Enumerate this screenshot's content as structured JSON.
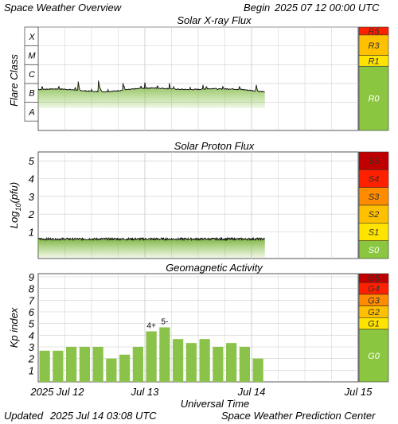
{
  "header": {
    "title": "Space Weather Overview",
    "begin_label": "Begin",
    "begin_value": "2025 07 12 00:00 UTC"
  },
  "footer": {
    "updated_label": "Updated",
    "updated_value": "2025 Jul 14 03:08 UTC",
    "credit": "Space Weather Prediction Center"
  },
  "colors": {
    "grid": "#cccccc",
    "frame": "#555555",
    "green": "#8bc34a",
    "green_dark": "#7cb342",
    "scale_green": "#8ac640",
    "yellow": "#ffe400",
    "orange_light": "#ffc000",
    "orange": "#ff8c00",
    "red_orange": "#ff2000",
    "dark_red": "#c00000"
  },
  "chart_data": [
    {
      "name": "xray",
      "type": "area",
      "title": "Solar X-ray Flux",
      "ylabel": "Flare Class",
      "class_labels": [
        "A",
        "B",
        "C",
        "M",
        "X"
      ],
      "ylim": [
        -8.5,
        -3
      ],
      "x_range_hours": [
        0,
        72
      ],
      "observed_until_hour": 51.1,
      "tick_labels": [
        "2025 Jul 12",
        "Jul 13",
        "Jul 14",
        "Jul 15"
      ],
      "peaks": [
        {
          "hour": 9.0,
          "log_flux": -5.9
        },
        {
          "hour": 13.5,
          "log_flux": -5.75
        },
        {
          "hour": 19.0,
          "log_flux": -5.85
        },
        {
          "hour": 24.0,
          "log_flux": -5.95
        },
        {
          "hour": 29.5,
          "log_flux": -5.95
        },
        {
          "hour": 37.0,
          "log_flux": -5.95
        },
        {
          "hour": 49.0,
          "log_flux": -5.95
        }
      ],
      "scale": [
        {
          "label": "R0",
          "color": "#8ac640"
        },
        {
          "label": "R1",
          "color": "#ffe400"
        },
        {
          "label": "R3",
          "color": "#ffc000"
        },
        {
          "label": "R5",
          "color": "#ff2000"
        }
      ]
    },
    {
      "name": "proton",
      "type": "area",
      "title": "Solar Proton Flux",
      "ylabel": "Log10(pfu)",
      "ylabel_main": "Log",
      "ylabel_sub": "10",
      "ylabel_tail": "(pfu)",
      "yticks": [
        1,
        2,
        3,
        4,
        5
      ],
      "ylim": [
        -0.5,
        5.5
      ],
      "x_range_hours": [
        0,
        72
      ],
      "observed_until_hour": 51.1,
      "baseline_log": 0.6,
      "scale": [
        {
          "label": "S0",
          "color": "#8ac640"
        },
        {
          "label": "S1",
          "color": "#ffe400"
        },
        {
          "label": "S2",
          "color": "#ffc000"
        },
        {
          "label": "S3",
          "color": "#ff8c00"
        },
        {
          "label": "S4",
          "color": "#ff2000"
        },
        {
          "label": "S5",
          "color": "#c00000"
        }
      ]
    },
    {
      "name": "kp",
      "type": "bar",
      "title": "Geomagnetic Activity",
      "ylabel": "Kp index",
      "yticks": [
        1,
        2,
        3,
        4,
        5,
        6,
        7,
        8,
        9
      ],
      "ylim": [
        0,
        9
      ],
      "x_range_hours": [
        0,
        72
      ],
      "bin_hours": 3,
      "values": [
        2.67,
        2.67,
        3.0,
        3.0,
        3.0,
        2.0,
        2.33,
        3.0,
        4.33,
        4.67,
        3.67,
        3.33,
        3.67,
        3.0,
        3.33,
        3.0,
        2.0
      ],
      "bar_labels": {
        "8": "4+",
        "9": "5-"
      },
      "xlabel": "Universal Time",
      "tick_labels": [
        "2025 Jul 12",
        "Jul 13",
        "Jul 14",
        "Jul 15"
      ],
      "scale": [
        {
          "label": "G0",
          "color": "#8ac640"
        },
        {
          "label": "G1",
          "color": "#ffe400"
        },
        {
          "label": "G2",
          "color": "#ffc000"
        },
        {
          "label": "G3",
          "color": "#ff8c00"
        },
        {
          "label": "G4",
          "color": "#ff2000"
        },
        {
          "label": "G5",
          "color": "#c00000"
        }
      ]
    }
  ]
}
